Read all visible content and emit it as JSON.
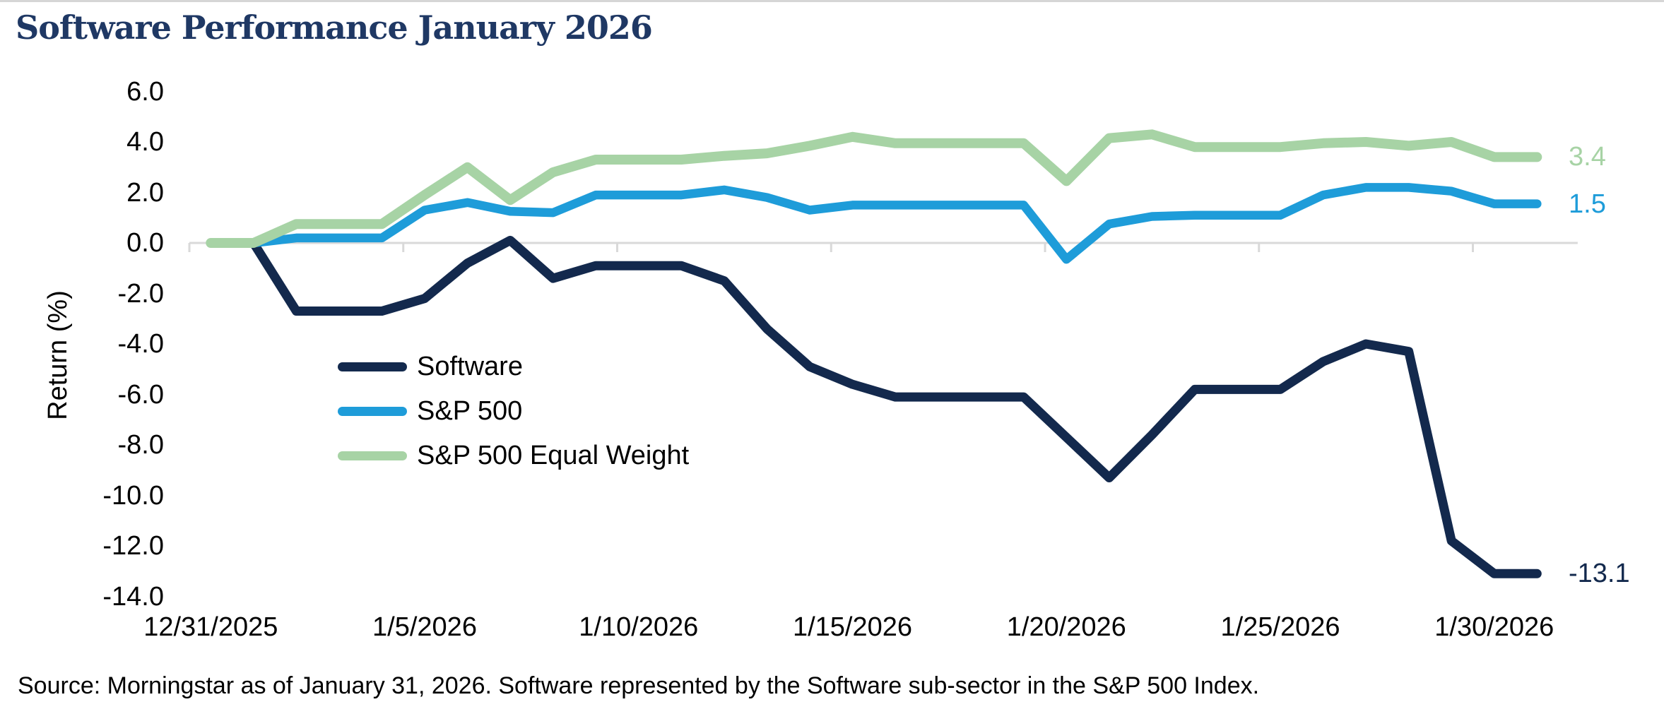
{
  "title": "Software Performance January 2026",
  "source_note": "Source: Morningstar as of January 31, 2026. Software represented by the Software sub-sector in the S&P 500 Index.",
  "colors": {
    "software": "#13294D",
    "sp500": "#1E9CD9",
    "sp500_equal_weight": "#A7D3A5",
    "title": "#1F3864",
    "gridline": "#D9D9D9"
  },
  "y_axis": {
    "label": "Return (%)",
    "tick_labels": [
      "6.0",
      "4.0",
      "2.0",
      "0.0",
      "-2.0",
      "-4.0",
      "-6.0",
      "-8.0",
      "-10.0",
      "-12.0",
      "-14.0"
    ],
    "tick_values": [
      6,
      4,
      2,
      0,
      -2,
      -4,
      -6,
      -8,
      -10,
      -12,
      -14
    ]
  },
  "x_axis": {
    "tick_labels": [
      "12/31/2025",
      "1/5/2026",
      "1/10/2026",
      "1/15/2026",
      "1/20/2026",
      "1/25/2026",
      "1/30/2026"
    ],
    "tick_day_indices": [
      0,
      5,
      10,
      15,
      20,
      25,
      30
    ]
  },
  "legend": [
    {
      "label": "Software",
      "color": "#13294D"
    },
    {
      "label": "S&P 500",
      "color": "#1E9CD9"
    },
    {
      "label": "S&P 500 Equal Weight",
      "color": "#A7D3A5"
    }
  ],
  "chart_data": {
    "type": "line",
    "title": "Software Performance January 2026",
    "ylabel": "Return (%)",
    "ylim": [
      -14,
      6
    ],
    "grid": "zero-line only",
    "legend_position": "inside middle-left",
    "x": [
      "12/31/2025",
      "1/1/2026",
      "1/2/2026",
      "1/3/2026",
      "1/4/2026",
      "1/5/2026",
      "1/6/2026",
      "1/7/2026",
      "1/8/2026",
      "1/9/2026",
      "1/10/2026",
      "1/11/2026",
      "1/12/2026",
      "1/13/2026",
      "1/14/2026",
      "1/15/2026",
      "1/16/2026",
      "1/17/2026",
      "1/18/2026",
      "1/19/2026",
      "1/20/2026",
      "1/21/2026",
      "1/22/2026",
      "1/23/2026",
      "1/24/2026",
      "1/25/2026",
      "1/26/2026",
      "1/27/2026",
      "1/28/2026",
      "1/29/2026",
      "1/30/2026",
      "1/31/2026"
    ],
    "series": [
      {
        "name": "Software",
        "color": "#13294D",
        "stroke_width": 13,
        "end_label": "-13.1",
        "values": [
          0.0,
          0.0,
          -2.7,
          -2.7,
          -2.7,
          -2.2,
          -0.8,
          0.1,
          -1.4,
          -0.9,
          -0.9,
          -0.9,
          -1.5,
          -3.4,
          -4.9,
          -5.6,
          -6.1,
          -6.1,
          -6.1,
          -6.1,
          -7.7,
          -9.3,
          -7.6,
          -5.8,
          -5.8,
          -5.8,
          -4.7,
          -4.0,
          -4.3,
          -11.8,
          -13.1,
          -13.1
        ]
      },
      {
        "name": "S&P 500",
        "color": "#1E9CD9",
        "stroke_width": 12.5,
        "end_label": "1.5",
        "values": [
          0.0,
          0.0,
          0.2,
          0.2,
          0.2,
          1.3,
          1.6,
          1.25,
          1.2,
          1.9,
          1.9,
          1.9,
          2.1,
          1.8,
          1.3,
          1.5,
          1.5,
          1.5,
          1.5,
          1.5,
          -0.65,
          0.75,
          1.05,
          1.1,
          1.1,
          1.1,
          1.9,
          2.2,
          2.2,
          2.05,
          1.55,
          1.55
        ]
      },
      {
        "name": "S&P 500 Equal Weight",
        "color": "#A7D3A5",
        "stroke_width": 14,
        "end_label": "3.4",
        "values": [
          0.0,
          0.0,
          0.75,
          0.75,
          0.75,
          1.9,
          3.0,
          1.7,
          2.8,
          3.3,
          3.3,
          3.3,
          3.45,
          3.55,
          3.85,
          4.2,
          3.95,
          3.95,
          3.95,
          3.95,
          2.45,
          4.15,
          4.3,
          3.8,
          3.8,
          3.8,
          3.95,
          4.0,
          3.85,
          4.0,
          3.4,
          3.4
        ]
      }
    ]
  }
}
